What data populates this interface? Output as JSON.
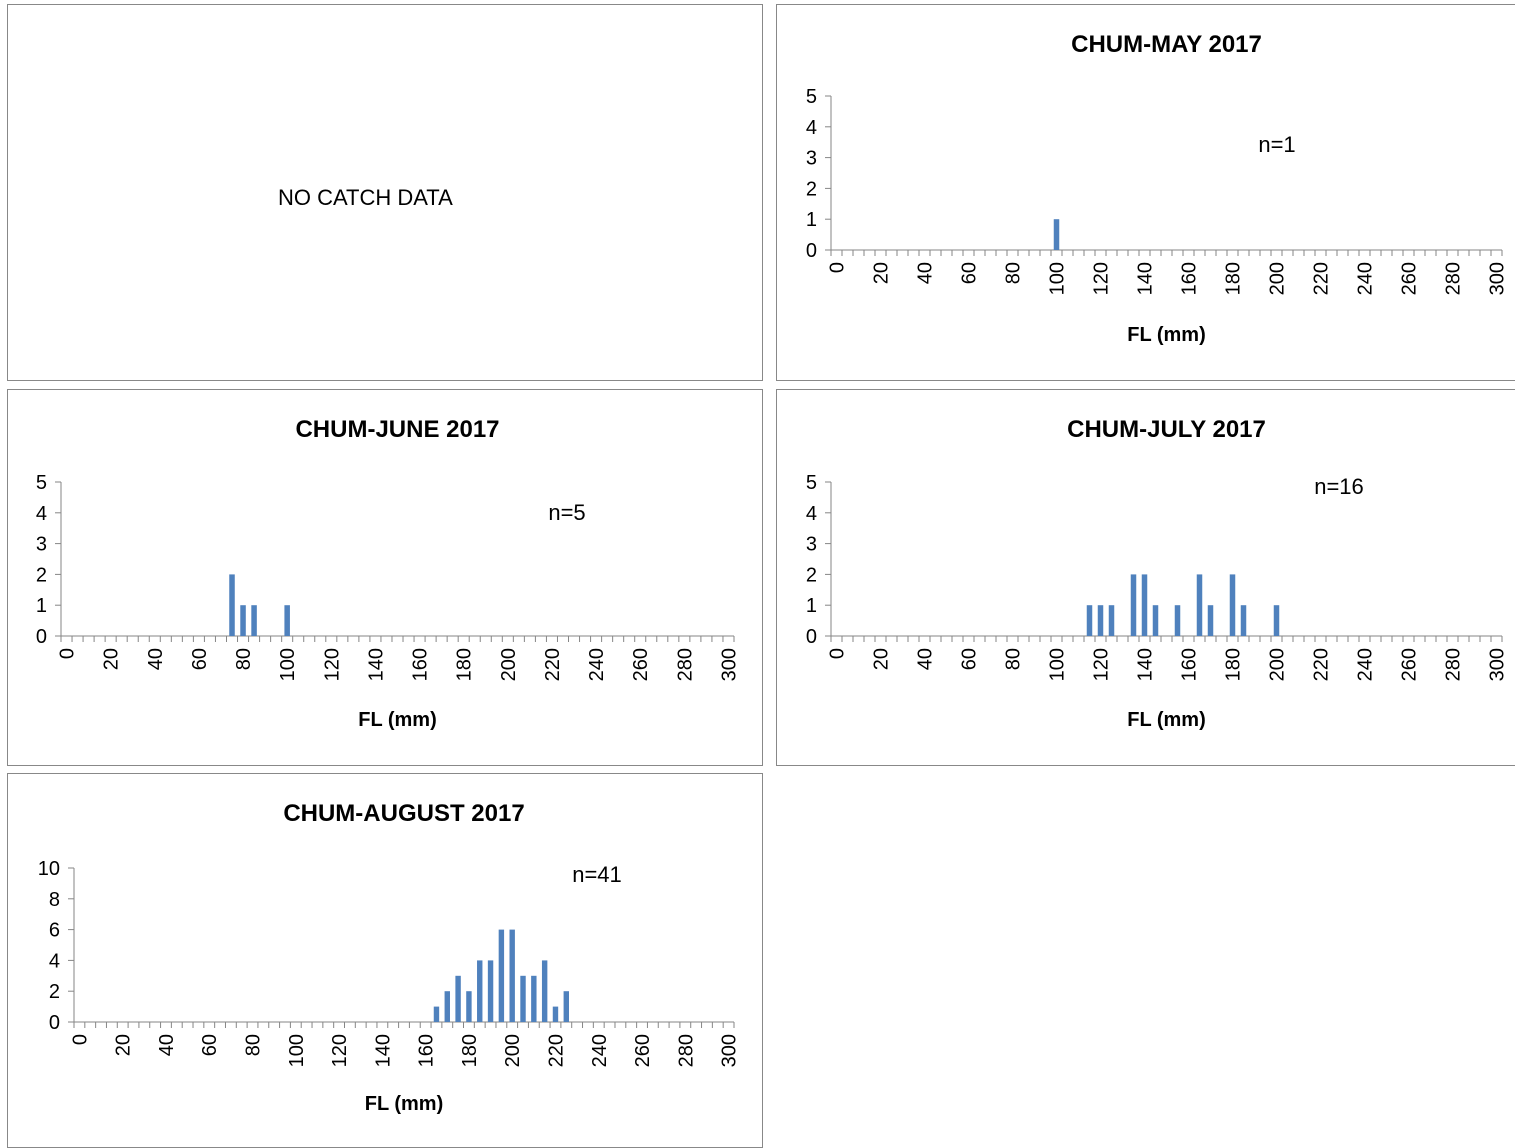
{
  "note_panel": {
    "text": "NO CATCH DATA"
  },
  "chart_data": [
    {
      "type": "bar",
      "title": "CHUM-MAY 2017",
      "xlabel": "FL (mm)",
      "annotation": "n=1",
      "color": "#4f81bd",
      "categories": [
        0,
        null,
        null,
        null,
        20,
        null,
        null,
        null,
        40,
        null,
        null,
        null,
        60,
        null,
        null,
        null,
        80,
        null,
        null,
        null,
        100,
        null,
        null,
        null,
        120,
        null,
        null,
        null,
        140,
        null,
        null,
        null,
        160,
        null,
        null,
        null,
        180,
        null,
        null,
        null,
        200,
        null,
        null,
        null,
        220,
        null,
        null,
        null,
        240,
        null,
        null,
        null,
        260,
        null,
        null,
        null,
        280,
        null,
        null,
        null,
        300
      ],
      "values": [
        0,
        0,
        0,
        0,
        0,
        0,
        0,
        0,
        0,
        0,
        0,
        0,
        0,
        0,
        0,
        0,
        0,
        0,
        0,
        0,
        1,
        0,
        0,
        0,
        0,
        0,
        0,
        0,
        0,
        0,
        0,
        0,
        0,
        0,
        0,
        0,
        0,
        0,
        0,
        0,
        0,
        0,
        0,
        0,
        0,
        0,
        0,
        0,
        0,
        0,
        0,
        0,
        0,
        0,
        0,
        0,
        0,
        0,
        0,
        0,
        0
      ],
      "ylim": [
        0,
        5
      ],
      "yticks": [
        0,
        1,
        2,
        3,
        4,
        5
      ]
    },
    {
      "type": "bar",
      "title": "CHUM-JUNE 2017",
      "xlabel": "FL (mm)",
      "annotation": "n=5",
      "color": "#4f81bd",
      "categories": [
        0,
        null,
        null,
        null,
        20,
        null,
        null,
        null,
        40,
        null,
        null,
        null,
        60,
        null,
        null,
        null,
        80,
        null,
        null,
        null,
        100,
        null,
        null,
        null,
        120,
        null,
        null,
        null,
        140,
        null,
        null,
        null,
        160,
        null,
        null,
        null,
        180,
        null,
        null,
        null,
        200,
        null,
        null,
        null,
        220,
        null,
        null,
        null,
        240,
        null,
        null,
        null,
        260,
        null,
        null,
        null,
        280,
        null,
        null,
        null,
        300
      ],
      "values": [
        0,
        0,
        0,
        0,
        0,
        0,
        0,
        0,
        0,
        0,
        0,
        0,
        0,
        0,
        0,
        2,
        1,
        1,
        0,
        0,
        1,
        0,
        0,
        0,
        0,
        0,
        0,
        0,
        0,
        0,
        0,
        0,
        0,
        0,
        0,
        0,
        0,
        0,
        0,
        0,
        0,
        0,
        0,
        0,
        0,
        0,
        0,
        0,
        0,
        0,
        0,
        0,
        0,
        0,
        0,
        0,
        0,
        0,
        0,
        0,
        0
      ],
      "ylim": [
        0,
        5
      ],
      "yticks": [
        0,
        1,
        2,
        3,
        4,
        5
      ]
    },
    {
      "type": "bar",
      "title": "CHUM-JULY 2017",
      "xlabel": "FL (mm)",
      "annotation": "n=16",
      "color": "#4f81bd",
      "categories": [
        0,
        null,
        null,
        null,
        20,
        null,
        null,
        null,
        40,
        null,
        null,
        null,
        60,
        null,
        null,
        null,
        80,
        null,
        null,
        null,
        100,
        null,
        null,
        null,
        120,
        null,
        null,
        null,
        140,
        null,
        null,
        null,
        160,
        null,
        null,
        null,
        180,
        null,
        null,
        null,
        200,
        null,
        null,
        null,
        220,
        null,
        null,
        null,
        240,
        null,
        null,
        null,
        260,
        null,
        null,
        null,
        280,
        null,
        null,
        null,
        300
      ],
      "values": [
        0,
        0,
        0,
        0,
        0,
        0,
        0,
        0,
        0,
        0,
        0,
        0,
        0,
        0,
        0,
        0,
        0,
        0,
        0,
        0,
        0,
        0,
        0,
        1,
        1,
        1,
        0,
        2,
        2,
        1,
        0,
        1,
        0,
        2,
        1,
        0,
        2,
        1,
        0,
        0,
        1,
        0,
        0,
        0,
        0,
        0,
        0,
        0,
        0,
        0,
        0,
        0,
        0,
        0,
        0,
        0,
        0,
        0,
        0,
        0,
        0
      ],
      "ylim": [
        0,
        5
      ],
      "yticks": [
        0,
        1,
        2,
        3,
        4,
        5
      ]
    },
    {
      "type": "bar",
      "title": "CHUM-AUGUST 2017",
      "xlabel": "FL (mm)",
      "annotation": "n=41",
      "color": "#4f81bd",
      "categories": [
        0,
        null,
        null,
        null,
        20,
        null,
        null,
        null,
        40,
        null,
        null,
        null,
        60,
        null,
        null,
        null,
        80,
        null,
        null,
        null,
        100,
        null,
        null,
        null,
        120,
        null,
        null,
        null,
        140,
        null,
        null,
        null,
        160,
        null,
        null,
        null,
        180,
        null,
        null,
        null,
        200,
        null,
        null,
        null,
        220,
        null,
        null,
        null,
        240,
        null,
        null,
        null,
        260,
        null,
        null,
        null,
        280,
        null,
        null,
        null,
        300
      ],
      "values": [
        0,
        0,
        0,
        0,
        0,
        0,
        0,
        0,
        0,
        0,
        0,
        0,
        0,
        0,
        0,
        0,
        0,
        0,
        0,
        0,
        0,
        0,
        0,
        0,
        0,
        0,
        0,
        0,
        0,
        0,
        0,
        0,
        0,
        1,
        2,
        3,
        2,
        4,
        4,
        6,
        6,
        3,
        3,
        4,
        1,
        2,
        0,
        0,
        0,
        0,
        0,
        0,
        0,
        0,
        0,
        0,
        0,
        0,
        0,
        0,
        0
      ],
      "ylim": [
        0,
        10
      ],
      "yticks": [
        0,
        2,
        4,
        6,
        8,
        10
      ]
    }
  ]
}
